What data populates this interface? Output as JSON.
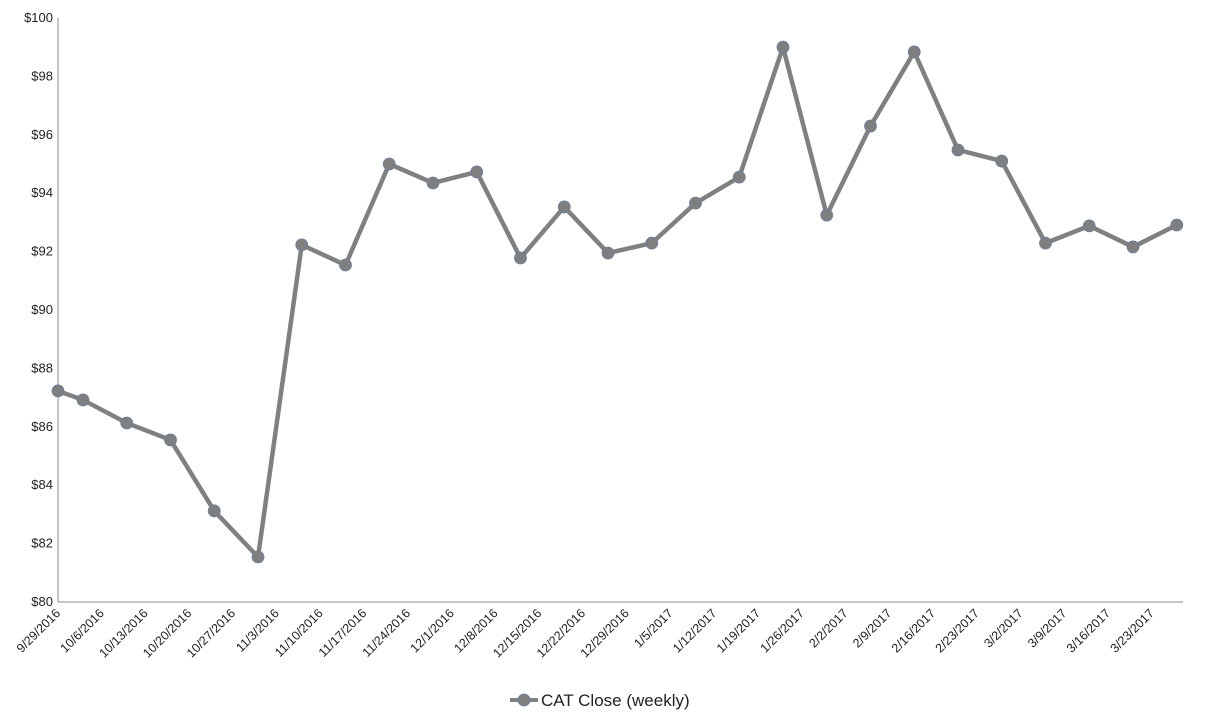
{
  "chart_data": {
    "type": "line",
    "title": "",
    "xlabel": "",
    "ylabel": "",
    "x_axis_type": "date",
    "xlim": [
      "9/29/2016",
      "3/28/2017"
    ],
    "ylim": [
      80,
      100
    ],
    "y_tick_step": 2,
    "y_tick_labels": [
      "$80",
      "$82",
      "$84",
      "$86",
      "$88",
      "$90",
      "$92",
      "$94",
      "$96",
      "$98",
      "$100"
    ],
    "x_tick_labels": [
      "9/29/2016",
      "10/6/2016",
      "10/13/2016",
      "10/20/2016",
      "10/27/2016",
      "11/3/2016",
      "11/10/2016",
      "11/17/2016",
      "11/24/2016",
      "12/1/2016",
      "12/8/2016",
      "12/15/2016",
      "12/22/2016",
      "12/29/2016",
      "1/5/2017",
      "1/12/2017",
      "1/19/2017",
      "1/26/2017",
      "2/2/2017",
      "2/9/2017",
      "2/16/2017",
      "2/23/2017",
      "3/2/2017",
      "3/9/2017",
      "3/16/2017",
      "3/23/2017"
    ],
    "grid": false,
    "legend_position": "bottom",
    "series": [
      {
        "name": "CAT Close (weekly)",
        "color": "#808080",
        "marker_color": "#7f7f7f",
        "x": [
          "9/29/2016",
          "10/3/2016",
          "10/10/2016",
          "10/17/2016",
          "10/24/2016",
          "10/31/2016",
          "11/7/2016",
          "11/14/2016",
          "11/21/2016",
          "11/28/2016",
          "12/5/2016",
          "12/12/2016",
          "12/19/2016",
          "12/26/2016",
          "1/2/2017",
          "1/9/2017",
          "1/16/2017",
          "1/23/2017",
          "1/30/2017",
          "2/6/2017",
          "2/13/2017",
          "2/20/2017",
          "2/27/2017",
          "3/6/2017",
          "3/13/2017",
          "3/20/2017",
          "3/27/2017"
        ],
        "y": [
          87.23,
          86.92,
          86.13,
          85.55,
          83.12,
          81.54,
          92.23,
          91.54,
          95.0,
          94.35,
          94.73,
          91.78,
          93.53,
          91.95,
          92.29,
          93.66,
          94.55,
          99.0,
          93.25,
          96.3,
          98.84,
          95.48,
          95.1,
          92.29,
          92.88,
          92.16,
          92.91
        ]
      }
    ]
  }
}
